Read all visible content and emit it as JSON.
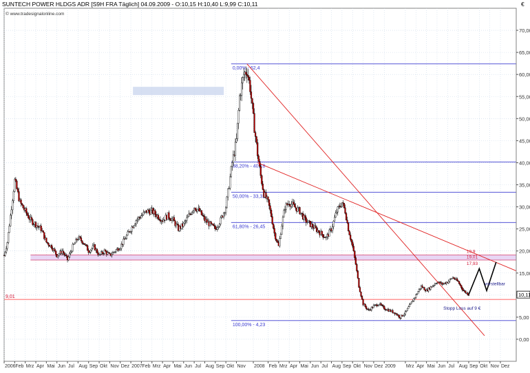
{
  "header": {
    "title": "SUNTECH POWER HLDGS  ADR [S9H FRA  Täglich] 04.09.2009 - O:10,15 H:10,40 L:9,99 C:10,11",
    "source": "© www.tradesignalonline.com"
  },
  "colors": {
    "fib": "#3a3ad0",
    "trend": "#e02020",
    "support": "#ff6060",
    "zone": "#e0c8f0",
    "zone_line": "#d02050",
    "candle_up": "#ffffff",
    "candle_down": "#c00000",
    "grid": "#c8d8e8"
  },
  "chart_data": {
    "type": "candlestick",
    "y_unit": "€",
    "ylim": [
      -5,
      75
    ],
    "y_ticks": [
      "0,00",
      "5,00",
      "10,00",
      "15,00",
      "20,00",
      "25,00",
      "30,00",
      "35,00",
      "40,00",
      "45,00",
      "50,00",
      "55,00",
      "60,00",
      "65,00",
      "70,00"
    ],
    "y_tick_values": [
      0,
      5,
      10,
      15,
      20,
      25,
      30,
      35,
      40,
      45,
      50,
      55,
      60,
      65,
      70
    ],
    "last_price_label": "10,11",
    "last_price": 10.11,
    "x_ticks": [
      {
        "label": "2006",
        "t": 0
      },
      {
        "label": "Feb",
        "t": 1
      },
      {
        "label": "Mrz",
        "t": 2
      },
      {
        "label": "Apr",
        "t": 3
      },
      {
        "label": "Mai",
        "t": 4
      },
      {
        "label": "Jun",
        "t": 5
      },
      {
        "label": "Jul",
        "t": 6
      },
      {
        "label": "Aug",
        "t": 7
      },
      {
        "label": "Sep",
        "t": 8
      },
      {
        "label": "Okt",
        "t": 9
      },
      {
        "label": "Nov",
        "t": 10
      },
      {
        "label": "Dez",
        "t": 11
      },
      {
        "label": "2007",
        "t": 12
      },
      {
        "label": "Feb",
        "t": 13
      },
      {
        "label": "Mrz",
        "t": 14
      },
      {
        "label": "Apr",
        "t": 15
      },
      {
        "label": "Mai",
        "t": 16
      },
      {
        "label": "Jun",
        "t": 17
      },
      {
        "label": "Jul",
        "t": 18
      },
      {
        "label": "Aug",
        "t": 19
      },
      {
        "label": "Sep",
        "t": 20
      },
      {
        "label": "Okt",
        "t": 21
      },
      {
        "label": "Nov",
        "t": 22
      },
      {
        "label": "2008",
        "t": 23.6
      },
      {
        "label": "Feb",
        "t": 25
      },
      {
        "label": "Mrz",
        "t": 26
      },
      {
        "label": "Apr",
        "t": 27
      },
      {
        "label": "Mai",
        "t": 28
      },
      {
        "label": "Jun",
        "t": 29
      },
      {
        "label": "Jul",
        "t": 30
      },
      {
        "label": "Aug",
        "t": 31
      },
      {
        "label": "Sep",
        "t": 32
      },
      {
        "label": "Okt",
        "t": 33
      },
      {
        "label": "Nov",
        "t": 34
      },
      {
        "label": "Dez",
        "t": 35
      },
      {
        "label": "2009",
        "t": 36
      },
      {
        "label": "Mrz",
        "t": 38
      },
      {
        "label": "Apr",
        "t": 39
      },
      {
        "label": "Mai",
        "t": 40
      },
      {
        "label": "Jun",
        "t": 41
      },
      {
        "label": "Jul",
        "t": 42
      },
      {
        "label": "Aug",
        "t": 43
      },
      {
        "label": "Sep",
        "t": 44
      },
      {
        "label": "Okt",
        "t": 45
      },
      {
        "label": "Nov",
        "t": 46
      },
      {
        "label": "Dez",
        "t": 47
      }
    ],
    "x_range": [
      0,
      48.5
    ],
    "price_path": [
      [
        0,
        19
      ],
      [
        0.3,
        22
      ],
      [
        0.6,
        28
      ],
      [
        1,
        36
      ],
      [
        1.5,
        31
      ],
      [
        2,
        29
      ],
      [
        2.5,
        27
      ],
      [
        3,
        26
      ],
      [
        3.5,
        25
      ],
      [
        4,
        22
      ],
      [
        4.5,
        21
      ],
      [
        5,
        19
      ],
      [
        5.5,
        20
      ],
      [
        6,
        18
      ],
      [
        6.5,
        21
      ],
      [
        7,
        23
      ],
      [
        7.5,
        22
      ],
      [
        8,
        20
      ],
      [
        8.5,
        21
      ],
      [
        9,
        19
      ],
      [
        9.5,
        20
      ],
      [
        10,
        19
      ],
      [
        10.5,
        20
      ],
      [
        11,
        21
      ],
      [
        11.5,
        23
      ],
      [
        12,
        25
      ],
      [
        12.5,
        27
      ],
      [
        13,
        28
      ],
      [
        13.5,
        29
      ],
      [
        14,
        29
      ],
      [
        14.5,
        28
      ],
      [
        15,
        27
      ],
      [
        15.5,
        28
      ],
      [
        16,
        27
      ],
      [
        16.5,
        25
      ],
      [
        17,
        26
      ],
      [
        17.5,
        28
      ],
      [
        18,
        30
      ],
      [
        18.5,
        29
      ],
      [
        19,
        27
      ],
      [
        19.5,
        26
      ],
      [
        20,
        25
      ],
      [
        20.5,
        27
      ],
      [
        21,
        30
      ],
      [
        21.3,
        35
      ],
      [
        21.6,
        40
      ],
      [
        22,
        45
      ],
      [
        22.3,
        55
      ],
      [
        22.7,
        60
      ],
      [
        23,
        61
      ],
      [
        23.3,
        57
      ],
      [
        23.6,
        50
      ],
      [
        24,
        42
      ],
      [
        24.3,
        37
      ],
      [
        24.6,
        33
      ],
      [
        25,
        31
      ],
      [
        25.3,
        28
      ],
      [
        25.6,
        24
      ],
      [
        26,
        21
      ],
      [
        26.3,
        26
      ],
      [
        26.6,
        30
      ],
      [
        27,
        31
      ],
      [
        27.5,
        30
      ],
      [
        28,
        29
      ],
      [
        28.5,
        27
      ],
      [
        29,
        26
      ],
      [
        29.5,
        25
      ],
      [
        30,
        24
      ],
      [
        30.5,
        23
      ],
      [
        31,
        25
      ],
      [
        31.5,
        29
      ],
      [
        32,
        31
      ],
      [
        32.3,
        29
      ],
      [
        32.6,
        25
      ],
      [
        33,
        21
      ],
      [
        33.3,
        17
      ],
      [
        33.6,
        12
      ],
      [
        34,
        8
      ],
      [
        34.5,
        6.5
      ],
      [
        35,
        7.5
      ],
      [
        35.5,
        8
      ],
      [
        36,
        7
      ],
      [
        36.5,
        6.5
      ],
      [
        37,
        6
      ],
      [
        37.5,
        5
      ],
      [
        38,
        6
      ],
      [
        38.5,
        8
      ],
      [
        39,
        10
      ],
      [
        39.5,
        12
      ],
      [
        40,
        11
      ],
      [
        40.5,
        12
      ],
      [
        41,
        13
      ],
      [
        41.5,
        12.5
      ],
      [
        42,
        13
      ],
      [
        42.5,
        14
      ],
      [
        43,
        13
      ],
      [
        43.5,
        11
      ],
      [
        44,
        10.11
      ]
    ],
    "fib_levels": [
      {
        "label": "0,00% - 62,4",
        "value": 62.4
      },
      {
        "label": "38,20% - 40,18",
        "value": 40.18
      },
      {
        "label": "50,00% - 33,32",
        "value": 33.32
      },
      {
        "label": "61,80% - 26,45",
        "value": 26.45
      },
      {
        "label": "100,00% - 4,23",
        "value": 4.23
      }
    ],
    "fib_x_start": 21.5,
    "zone": {
      "top": 19.1,
      "bottom": 17.93,
      "labels": [
        "19,9",
        "19,01",
        "17,93"
      ]
    },
    "support": {
      "label": "9,01",
      "value": 9.01
    },
    "trendlines": [
      {
        "from": [
          23,
          62.4
        ],
        "to": [
          45.5,
          0.8
        ]
      },
      {
        "from": [
          24,
          40
        ],
        "to": [
          48.5,
          15.5
        ]
      }
    ],
    "projection": [
      [
        44,
        10.11
      ],
      [
        45,
        16
      ],
      [
        45.7,
        11
      ],
      [
        46.6,
        17.5
      ]
    ],
    "annotations": {
      "projection_label": "vorstellbar",
      "stop_loss_label": "Stopp Loss auf 9 €"
    },
    "faded_label_box": true
  }
}
